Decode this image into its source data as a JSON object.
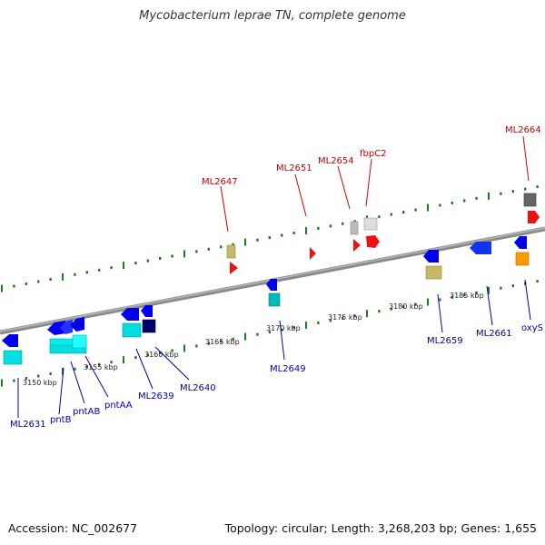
{
  "title": "Mycobacterium leprae TN, complete genome",
  "footer": {
    "accession": "Accession: NC_002677",
    "summary": "Topology: circular; Length: 3,268,203 bp; Genes: 1,655"
  },
  "colors": {
    "forward_label": "#cc0000",
    "reverse_label": "#0000aa",
    "backbone": "#8a8a8a",
    "tick": "#1f7a1f"
  },
  "scale": {
    "unit": "kbp",
    "ticks": [
      {
        "kbp": 3150,
        "label": "3150 kbp"
      },
      {
        "kbp": 3155,
        "label": "3155 kbp"
      },
      {
        "kbp": 3160,
        "label": "3160 kbp"
      },
      {
        "kbp": 3165,
        "label": "3165 kbp"
      },
      {
        "kbp": 3170,
        "label": "3170 kbp"
      },
      {
        "kbp": 3175,
        "label": "3175 kbp"
      },
      {
        "kbp": 3180,
        "label": "3180 kbp"
      },
      {
        "kbp": 3185,
        "label": "3185 kbp"
      }
    ]
  },
  "forward_genes": [
    {
      "label": "ML2647",
      "gene": "3162.2",
      "color": "#c8b86a"
    },
    {
      "label": "ML2651",
      "gene": "3168.5",
      "color": "#ee1111"
    },
    {
      "label": "ML2654",
      "gene": "3174.0",
      "color": "#bbbbbb"
    },
    {
      "label": "fbpC2",
      "gene": "3175.5",
      "color": "#dddddd"
    },
    {
      "label": "ML2664",
      "gene": "3189.0",
      "color": "#777777"
    }
  ],
  "reverse_genes": [
    {
      "label": "ML2631",
      "gene": "3148.6",
      "color": "#00e0e0"
    },
    {
      "label": "pntB",
      "gene": "3152.3",
      "color": "#00eeee"
    },
    {
      "label": "pntAB",
      "gene": "3153.3",
      "color": "#00eeee"
    },
    {
      "label": "pntAA",
      "gene": "3154.5",
      "color": "#0000ee"
    },
    {
      "label": "ML2639",
      "gene": "3157.8",
      "color": "#00dddd"
    },
    {
      "label": "ML2640",
      "gene": "3158.6",
      "color": "#000066"
    },
    {
      "label": "ML2649",
      "gene": "3168.2",
      "color": "#00bbbb"
    },
    {
      "label": "ML2659",
      "gene": "3178.4",
      "color": "#c8b86a"
    },
    {
      "label": "ML2661",
      "gene": "3183.4",
      "color": "#1133ee"
    },
    {
      "label": "oxyS",
      "gene": "3187.0",
      "color": "#ff9900"
    }
  ]
}
